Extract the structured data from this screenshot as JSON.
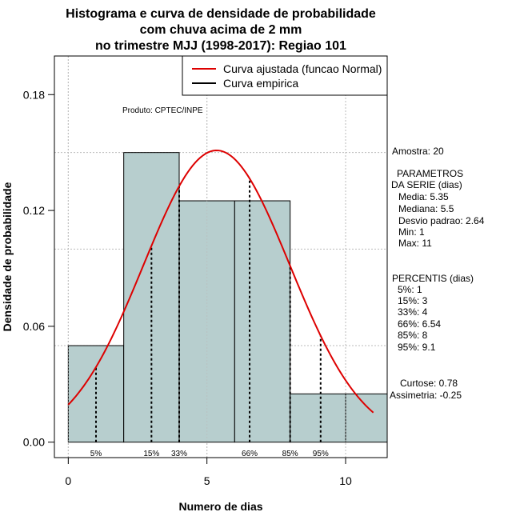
{
  "chart_data": {
    "type": "histogram",
    "title_lines": [
      "Histograma e curva de densidade de probabilidade",
      "com chuva acima de 2 mm",
      "no trimestre MJJ (1998-2017): Regiao 101"
    ],
    "xlabel": "Numero de dias",
    "ylabel": "Densidade de probabilidade",
    "xlim": [
      -0.5,
      11.5
    ],
    "ylim": [
      -0.008,
      0.2
    ],
    "x_ticks": [
      0,
      5,
      10
    ],
    "y_ticks": [
      0.0,
      0.06,
      0.12,
      0.18
    ],
    "y_tick_labels": [
      "0.00",
      "0.06",
      "0.12",
      "0.18"
    ],
    "grid": true,
    "grid_x": [
      0,
      5,
      10
    ],
    "grid_y": [
      0.05,
      0.1,
      0.15
    ],
    "bars": [
      {
        "x0": 0,
        "x1": 2,
        "density": 0.05
      },
      {
        "x0": 2,
        "x1": 4,
        "density": 0.15
      },
      {
        "x0": 4,
        "x1": 6,
        "density": 0.125
      },
      {
        "x0": 6,
        "x1": 8,
        "density": 0.125
      },
      {
        "x0": 8,
        "x1": 10,
        "density": 0.025
      },
      {
        "x0": 10,
        "x1": 11.5,
        "density": 0.025
      }
    ],
    "normal_curve": {
      "mean": 5.35,
      "sd": 2.64,
      "x_from": 0,
      "x_to": 11
    },
    "percentile_lines": [
      {
        "label": "5%",
        "x": 1
      },
      {
        "label": "15%",
        "x": 3
      },
      {
        "label": "33%",
        "x": 4
      },
      {
        "label": "66%",
        "x": 6.54
      },
      {
        "label": "85%",
        "x": 8
      },
      {
        "label": "95%",
        "x": 9.1
      }
    ],
    "legend": {
      "position": "top-right",
      "entries": [
        {
          "label": "Curva ajustada (funcao Normal)",
          "color": "#dd0000"
        },
        {
          "label": "Curva empirica",
          "color": "#000000"
        }
      ]
    },
    "product_label": "Produto: CPTEC/INPE",
    "colors": {
      "bar_fill": "#b7cece",
      "curve": "#dd0000",
      "grid": "#bbbbbb"
    }
  },
  "stats": {
    "amostra": "Amostra: 20",
    "param_title_1": "PARAMETROS",
    "param_title_2": "DA SERIE (dias)",
    "params": [
      "Media: 5.35",
      "Mediana: 5.5",
      "Desvio padrao: 2.64",
      "Min: 1",
      "Max: 11"
    ],
    "percentis_title": "PERCENTIS (dias)",
    "percentis": [
      "5%: 1",
      "15%: 3",
      "33%: 4",
      "66%: 6.54",
      "85%: 8",
      "95%: 9.1"
    ],
    "curtose": "Curtose: 0.78",
    "assimetria": "Assimetria: -0.25"
  }
}
